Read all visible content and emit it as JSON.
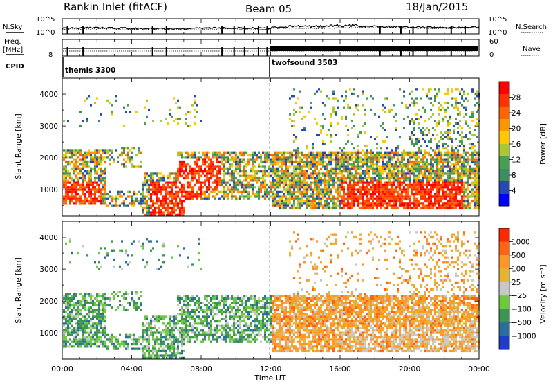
{
  "header": {
    "station": "Rankin Inlet (fitACF)",
    "beam": "Beam 05",
    "date": "18/Jan/2015"
  },
  "panels": {
    "noise": {
      "left_label": "N.Sky",
      "right_label": "N.Search",
      "left_ticks": [
        "10^5",
        "10^0"
      ],
      "right_ticks": [
        "10^5",
        "10^0"
      ]
    },
    "freq": {
      "left_label_1": "Freq.",
      "left_label_2": "[MHz]",
      "right_label": "Nave",
      "left_ticks": [
        "8"
      ],
      "right_ticks": [
        "60",
        "0"
      ]
    },
    "cpid": {
      "label": "CPID",
      "modes": [
        {
          "name": "themis 3300",
          "start_hour": 0
        },
        {
          "name": "twofsound 3503",
          "start_hour": 12
        }
      ]
    }
  },
  "chart_data": [
    {
      "type": "heatmap",
      "name": "power",
      "ylabel": "Slant Range [km]",
      "yticks": [
        "4000",
        "3000",
        "2000",
        "1000"
      ],
      "ylim": [
        180,
        4500
      ],
      "colorbar_label": "Power [dB]",
      "colorbar_ticks": [
        "28",
        "24",
        "20",
        "16",
        "12",
        "8",
        "4"
      ],
      "colors": [
        "#0000ff",
        "#2846b4",
        "#3c8c64",
        "#46a050",
        "#aac832",
        "#ffc800",
        "#ff9600",
        "#ff6400",
        "#ff3200",
        "#ff0000"
      ]
    },
    {
      "type": "heatmap",
      "name": "velocity",
      "ylabel": "Slant Range [km]",
      "yticks": [
        "4000",
        "3000",
        "2000",
        "1000"
      ],
      "ylim": [
        180,
        4500
      ],
      "colorbar_label": "Velocity [m s⁻¹]",
      "colorbar_ticks": [
        "1000",
        "500",
        "100",
        "25",
        "−25",
        "−100",
        "−500",
        "−1000"
      ],
      "colors": [
        "#1e3cc8",
        "#2a6ea0",
        "#3c9650",
        "#6cc83c",
        "#c8c8c8",
        "#e6b432",
        "#ff9628",
        "#ff6414",
        "#ff2800"
      ]
    }
  ],
  "xaxis": {
    "label": "Time UT",
    "ticks": [
      "00:00",
      "04:00",
      "08:00",
      "12:00",
      "16:00",
      "20:00",
      "00:00"
    ],
    "xlim": [
      0,
      24
    ]
  }
}
